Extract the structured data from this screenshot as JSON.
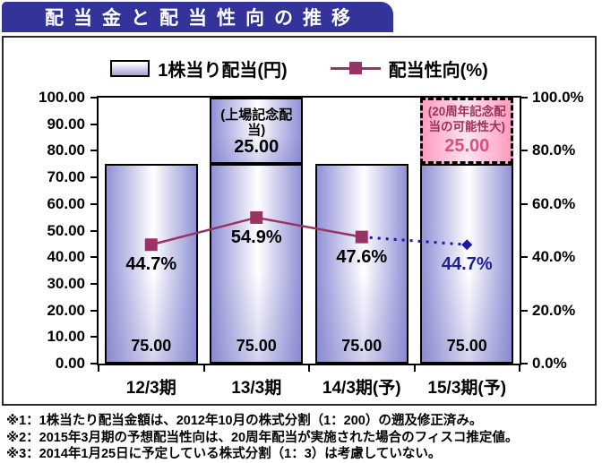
{
  "title": "配当金と配当性向の推移",
  "legend": [
    {
      "type": "bar-swatch",
      "label": "1株当り配当(円)"
    },
    {
      "type": "line-marker",
      "label": "配当性向(%)"
    }
  ],
  "colors": {
    "title_bg": "#333399",
    "title_text": "#ffffff",
    "bar_edge": "#9191d6",
    "bar_center": "#ffffff",
    "payout_line": "#993366",
    "forecast_line": "#1a1aa6",
    "forecast_label": "#22228e",
    "pink_box_edge": "#ff9cc0",
    "pink_box_center": "#ffe4ee",
    "pink_value_text": "#d94f85",
    "pink_note_text": "#993358"
  },
  "chart_data": {
    "type": "bar",
    "subtype": "stacked bars (left axis) + line with markers (right axis)",
    "categories": [
      "12/3期",
      "13/3期",
      "14/3期(予)",
      "15/3期(予)"
    ],
    "bar_series": {
      "name": "1株当り配当(円)",
      "axis": "left",
      "stacks": [
        [
          {
            "value": 75,
            "label": "75.00",
            "style": "blue"
          }
        ],
        [
          {
            "value": 75,
            "label": "75.00",
            "style": "blue"
          },
          {
            "value": 25,
            "label": "25.00",
            "note": "(上場記念配当)",
            "style": "blue"
          }
        ],
        [
          {
            "value": 75,
            "label": "75.00",
            "style": "blue"
          }
        ],
        [
          {
            "value": 75,
            "label": "75.00",
            "style": "blue"
          },
          {
            "value": 25,
            "label": "25.00",
            "note": "(20周年記念配当の可能性大)",
            "style": "pink-dashed"
          }
        ]
      ]
    },
    "line_series": {
      "name": "配当性向(%)",
      "axis": "right",
      "points": [
        {
          "value": 44.7,
          "label": "44.7%",
          "marker": "square",
          "to_next": "solid",
          "label_color": "#000000"
        },
        {
          "value": 54.9,
          "label": "54.9%",
          "marker": "square",
          "to_next": "solid",
          "label_color": "#000000"
        },
        {
          "value": 47.6,
          "label": "47.6%",
          "marker": "square",
          "to_next": "dotted",
          "label_color": "#000000"
        },
        {
          "value": 44.7,
          "label": "44.7%",
          "marker": "diamond",
          "to_next": null,
          "label_color": "#22228e"
        }
      ]
    },
    "axis_left": {
      "min": 0,
      "max": 100,
      "tick_labels": [
        "100.00",
        "90.00",
        "80.00",
        "70.00",
        "60.00",
        "50.00",
        "40.00",
        "30.00",
        "20.00",
        "10.00",
        "0.00"
      ]
    },
    "axis_right": {
      "min": 0,
      "max": 100,
      "tick_labels": [
        "100.0%",
        "80.0%",
        "60.0%",
        "40.0%",
        "20.0%",
        "0.0%"
      ]
    },
    "grid": false,
    "legend_position": "top"
  },
  "footnotes": [
    "※1：1株当たり配当金額は、2012年10月の株式分割（1：200）の遡及修正済み。",
    "※2：2015年3月期の予想配当性向は、20周年配当が実施された場合のフィスコ推定値。",
    "※3：2014年1月25日に予定している株式分割（1：3）は考慮していない。"
  ]
}
